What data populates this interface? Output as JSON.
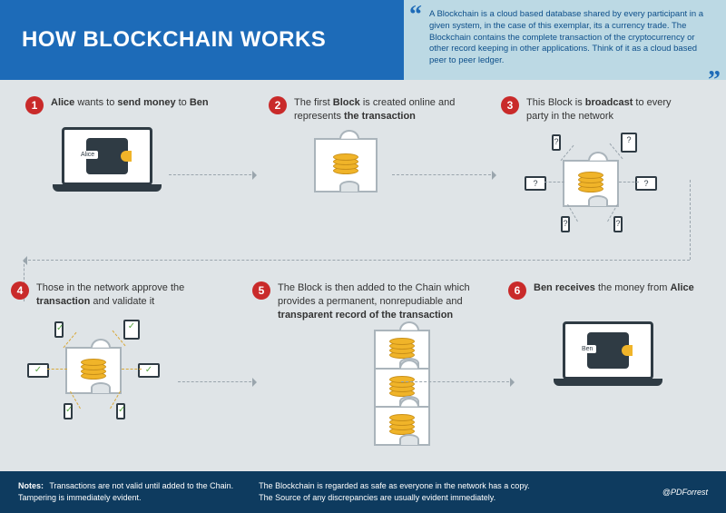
{
  "title": "HOW BLOCKCHAIN WORKS",
  "quote": "A Blockchain is a cloud based database shared by every participant in a given system, in the case of this exemplar, its a currency trade. The Blockchain contains the complete transaction of the cryptocurrency or other record keeping in other applications. Think of it as a cloud based peer to peer ledger.",
  "colors": {
    "header_blue": "#1d6bb8",
    "quote_bg": "#bcd9e4",
    "body_bg": "#dfe4e7",
    "footer_bg": "#0e3b5f",
    "badge_red": "#c92a2a",
    "coin_gold": "#f0b429",
    "device_dark": "#2f3b44",
    "check_green": "#5aa845",
    "arrow_gray": "#9aa5ad"
  },
  "steps": [
    {
      "n": "1",
      "html": "<b>Alice</b> wants to <b>send money</b> to <b>Ben</b>"
    },
    {
      "n": "2",
      "html": "The first <b>Block</b> is created online and represents <b>the transaction</b>"
    },
    {
      "n": "3",
      "html": "This Block is <b>broadcast</b> to every party in the network"
    },
    {
      "n": "4",
      "html": "Those in the network approve the <b>transaction</b> and validate it"
    },
    {
      "n": "5",
      "html": "The Block is then added to the Chain which provides a permanent, nonrepudiable and <b>transparent record of the transaction</b>"
    },
    {
      "n": "6",
      "html": "<b>Ben receives</b> the money from <b>Alice</b>"
    }
  ],
  "wallets": {
    "sender": "Alice",
    "receiver": "Ben"
  },
  "footer": {
    "label": "Notes:",
    "col1a": "Transactions are not valid until added to the Chain.",
    "col1b": "Tampering is immediately evident.",
    "col2a": "The Blockchain is regarded as safe as everyone in the network has a copy.",
    "col2b": "The Source of any discrepancies are usually evident immediately.",
    "credit": "@PDForrest"
  }
}
